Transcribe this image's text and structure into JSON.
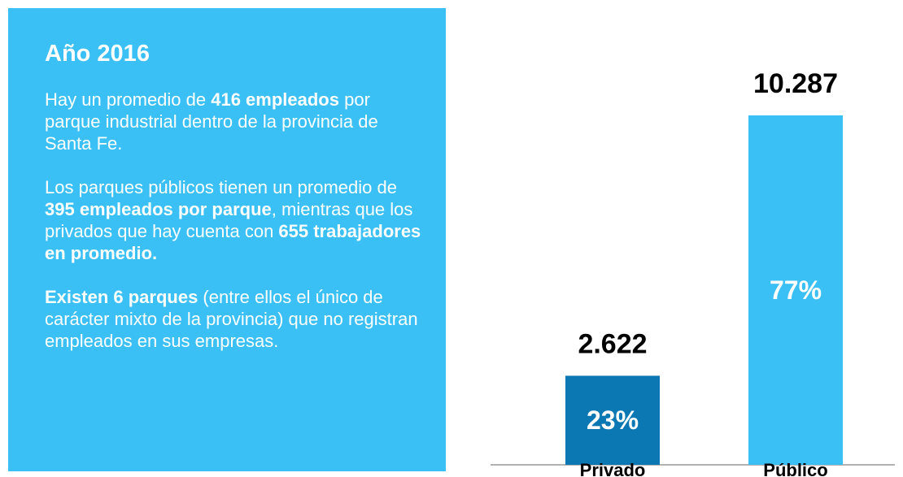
{
  "panel": {
    "title": "Año 2016",
    "paragraphs": [
      [
        {
          "text": "Hay un promedio de ",
          "bold": false
        },
        {
          "text": "416 empleados",
          "bold": true
        },
        {
          "text": " por parque industrial dentro de la provincia de Santa Fe.",
          "bold": false
        }
      ],
      [
        {
          "text": "Los parques públicos tienen un promedio de ",
          "bold": false
        },
        {
          "text": "395 empleados por parque",
          "bold": true
        },
        {
          "text": ", mientras que los privados que hay cuenta con ",
          "bold": false
        },
        {
          "text": "655 trabajadores en promedio.",
          "bold": true
        }
      ],
      [
        {
          "text": "Existen 6 parques",
          "bold": true
        },
        {
          "text": " (entre ellos el único de carácter mixto de la provincia) que no registran empleados en sus empresas.",
          "bold": false
        }
      ]
    ]
  },
  "chart_data": {
    "type": "bar",
    "categories": [
      "Privado",
      "Público"
    ],
    "values": [
      2622,
      10287
    ],
    "value_labels": [
      "2.622",
      "10.287"
    ],
    "shares": [
      23,
      77
    ],
    "share_labels": [
      "23%",
      "77%"
    ],
    "colors": [
      "#0b78b4",
      "#3bc0f6"
    ]
  }
}
